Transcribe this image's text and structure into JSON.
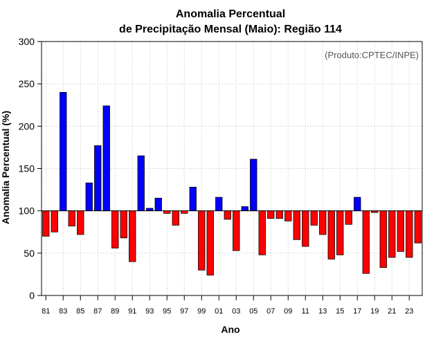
{
  "chart_data": {
    "type": "bar",
    "title_line1": "Anomalia Percentual",
    "title_line2": "de Precipitação Mensal (Maio): Região 114",
    "xlabel": "Ano",
    "ylabel": "Anomalia Percentual (%)",
    "annotation": "(Produto:CPTEC/INPE)",
    "ylim": [
      0,
      300
    ],
    "yticks": [
      0,
      50,
      100,
      150,
      200,
      250,
      300
    ],
    "baseline": 100,
    "grid": true,
    "colors": {
      "above": "#0000ff",
      "below": "#ff0000",
      "edge": "#000000",
      "grid": "#d8d8d8"
    },
    "categories": [
      "81",
      "82",
      "83",
      "84",
      "85",
      "86",
      "87",
      "88",
      "89",
      "90",
      "91",
      "92",
      "93",
      "94",
      "95",
      "96",
      "97",
      "98",
      "99",
      "00",
      "01",
      "02",
      "03",
      "04",
      "05",
      "06",
      "07",
      "08",
      "09",
      "10",
      "11",
      "12",
      "13",
      "14",
      "15",
      "16",
      "17",
      "18",
      "19",
      "20",
      "21",
      "22",
      "23",
      "24"
    ],
    "tick_labels": [
      "81",
      "83",
      "85",
      "87",
      "89",
      "91",
      "93",
      "95",
      "97",
      "99",
      "01",
      "03",
      "05",
      "07",
      "09",
      "11",
      "13",
      "15",
      "17",
      "19",
      "21",
      "23"
    ],
    "values": [
      70,
      75,
      240,
      82,
      72,
      133,
      177,
      224,
      56,
      68,
      40,
      165,
      103,
      115,
      97,
      83,
      97,
      128,
      30,
      24,
      116,
      90,
      53,
      105,
      161,
      48,
      91,
      91,
      88,
      66,
      58,
      83,
      72,
      43,
      48,
      84,
      116,
      26,
      98,
      33,
      45,
      52,
      45,
      62
    ]
  }
}
